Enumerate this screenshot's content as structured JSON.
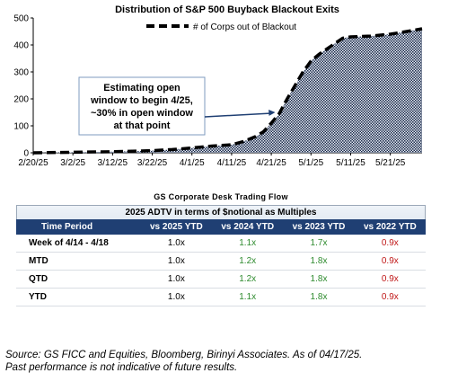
{
  "chart_data": {
    "type": "area",
    "title": "Distribution of S&P 500 Buyback Blackout Exits",
    "legend": {
      "label": "# of Corps out of Blackout",
      "position": "top-right"
    },
    "x_ticks": [
      "2/20/25",
      "3/2/25",
      "3/12/25",
      "3/22/25",
      "4/1/25",
      "4/11/25",
      "4/21/25",
      "5/1/25",
      "5/11/25",
      "5/21/25"
    ],
    "xlim": [
      "2025-02-20",
      "2025-05-29"
    ],
    "ylim": [
      0,
      500
    ],
    "y_ticks": [
      0,
      100,
      200,
      300,
      400,
      500
    ],
    "grid": false,
    "series": [
      {
        "name": "# of Corps out of Blackout",
        "x": [
          "2025-02-20",
          "2025-03-02",
          "2025-03-12",
          "2025-03-22",
          "2025-03-27",
          "2025-04-01",
          "2025-04-06",
          "2025-04-11",
          "2025-04-14",
          "2025-04-17",
          "2025-04-19",
          "2025-04-21",
          "2025-04-23",
          "2025-04-25",
          "2025-04-27",
          "2025-04-29",
          "2025-05-01",
          "2025-05-03",
          "2025-05-05",
          "2025-05-07",
          "2025-05-09",
          "2025-05-11",
          "2025-05-16",
          "2025-05-21",
          "2025-05-26",
          "2025-05-29"
        ],
        "y": [
          0,
          2,
          4,
          8,
          12,
          18,
          25,
          30,
          42,
          60,
          78,
          110,
          145,
          200,
          250,
          300,
          340,
          365,
          385,
          405,
          425,
          430,
          433,
          440,
          452,
          460
        ]
      }
    ],
    "annotation": {
      "text": [
        "Estimating open",
        "window to begin 4/25,",
        "~30% in open window",
        "at that point"
      ],
      "arrow_to": {
        "x": "2025-04-22",
        "y": 150
      }
    }
  },
  "table": {
    "title": "GS Corporate Desk Trading Flow",
    "subtitle": "2025 ADTV in terms of $notional as Multiples",
    "columns": [
      "Time Period",
      "vs 2025 YTD",
      "vs 2024 YTD",
      "vs 2023 YTD",
      "vs 2022 YTD"
    ],
    "rows": [
      [
        "Week of 4/14 - 4/18",
        "1.0x",
        "1.1x",
        "1.7x",
        "0.9x"
      ],
      [
        "MTD",
        "1.0x",
        "1.2x",
        "1.8x",
        "0.9x"
      ],
      [
        "QTD",
        "1.0x",
        "1.2x",
        "1.8x",
        "0.9x"
      ],
      [
        "YTD",
        "1.0x",
        "1.1x",
        "1.8x",
        "0.9x"
      ]
    ],
    "column_colors": [
      "#000000",
      "#000000",
      "#2e8b2e",
      "#2e8b2e",
      "#c01818"
    ]
  },
  "footer": {
    "line1": "Source: GS FICC and Equities, Bloomberg, Birinyi Associates. As of 04/17/25.",
    "line2": "Past performance is not indicative of future results."
  }
}
